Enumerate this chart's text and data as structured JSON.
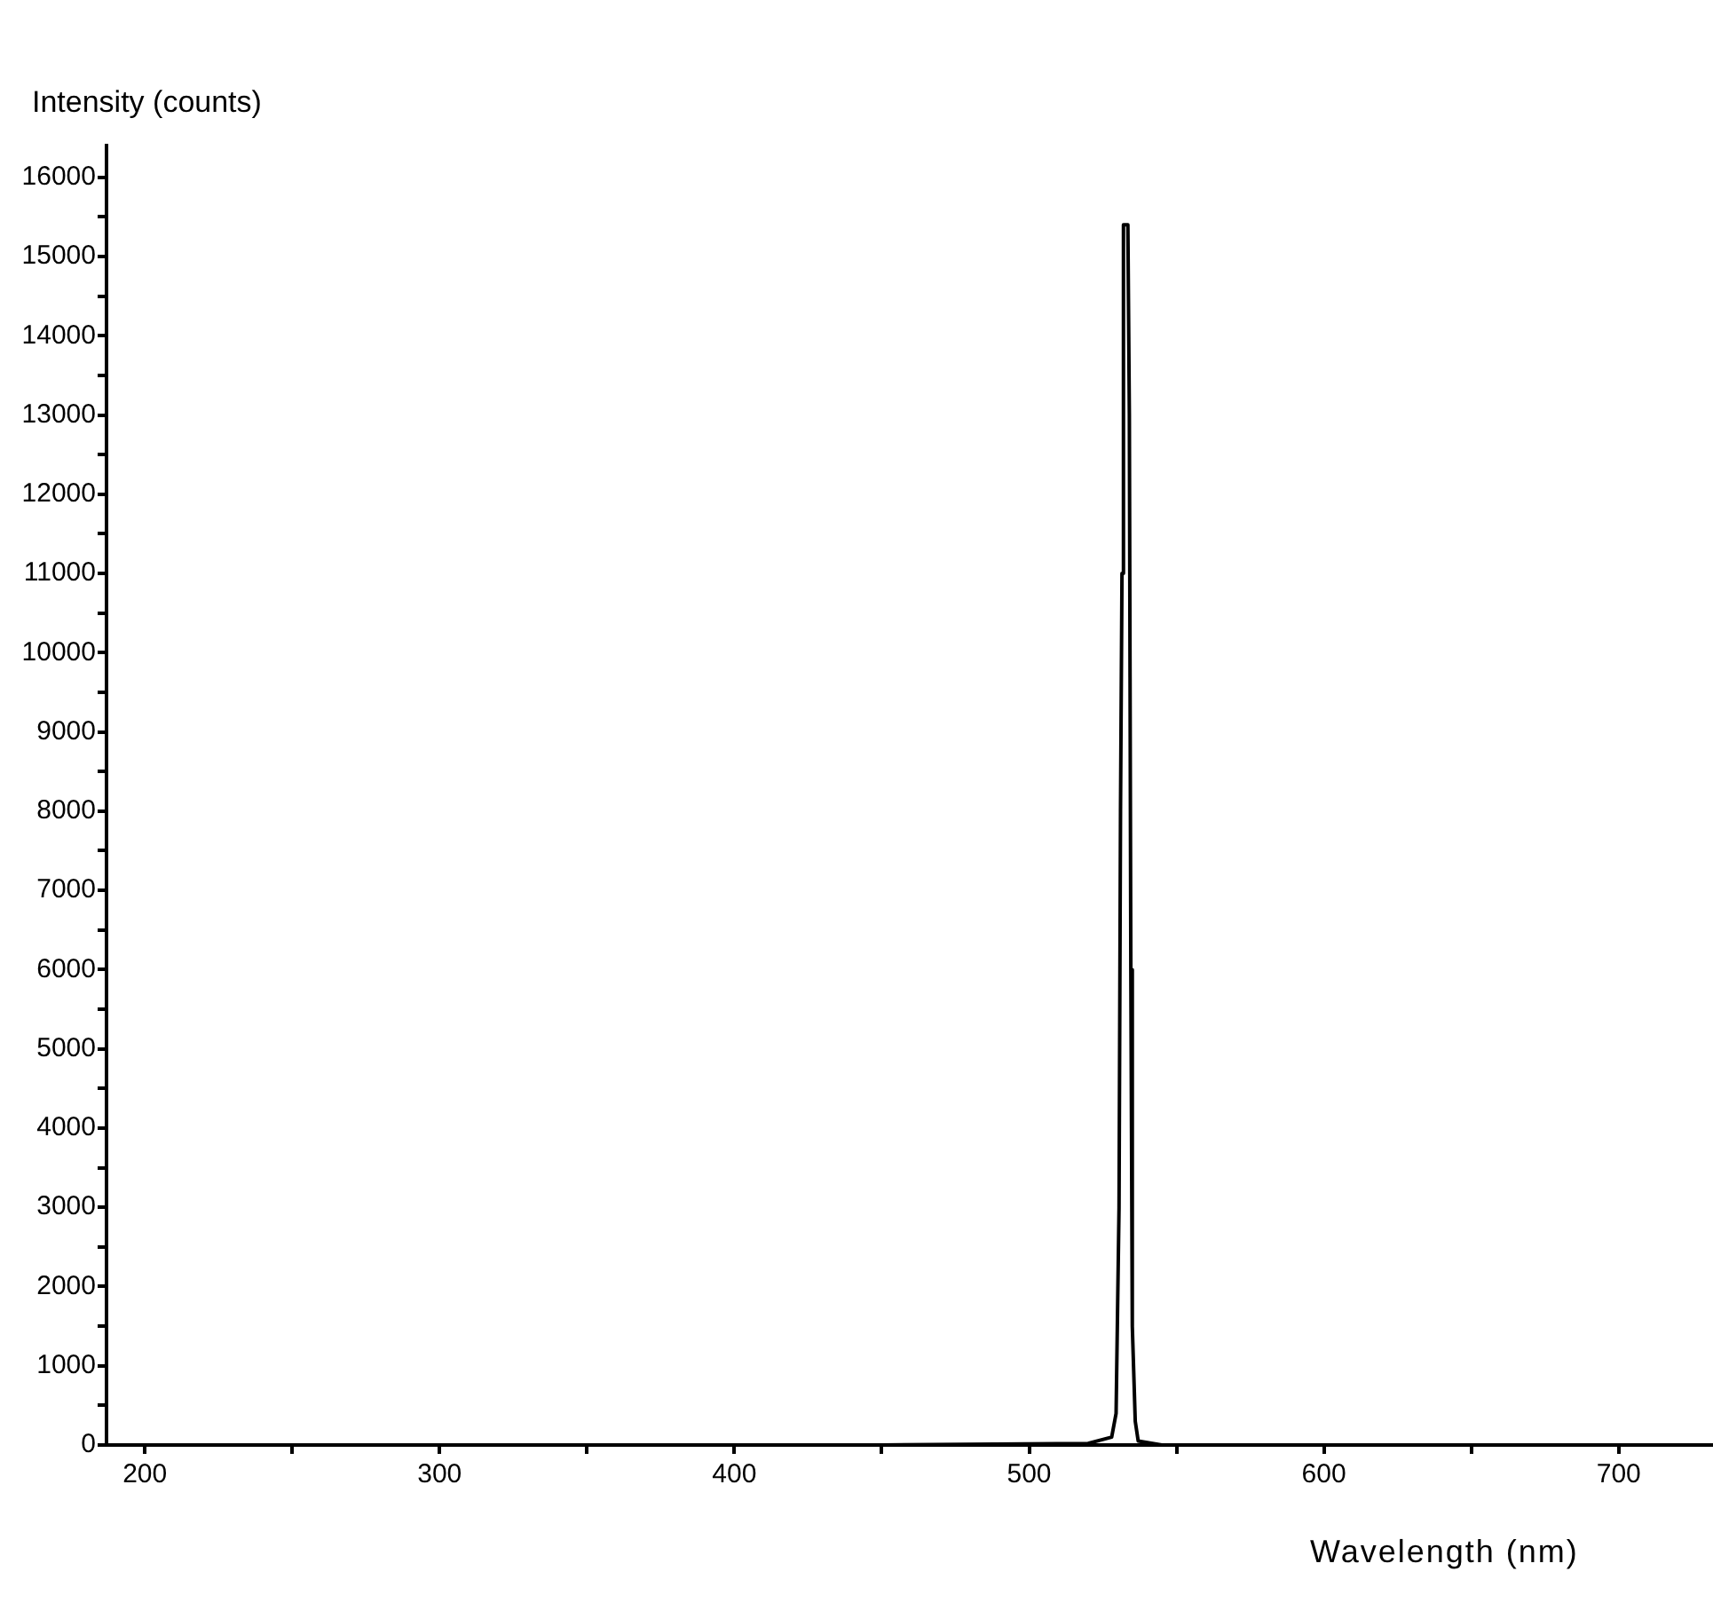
{
  "chart_data": {
    "type": "line",
    "xlabel": "Wavelength (nm)",
    "ylabel": "Intensity (counts)",
    "x": [
      187,
      300,
      450,
      520,
      528,
      529.5,
      530.5,
      531,
      531.5,
      532,
      533.5,
      534,
      534.5,
      535,
      536,
      537,
      545,
      600,
      732
    ],
    "series": [
      {
        "color": "#000000",
        "values": [
          0,
          0,
          0,
          20,
          100,
          400,
          3000,
          8000,
          11000,
          15400,
          15400,
          13000,
          6000,
          1500,
          300,
          50,
          0,
          0,
          0
        ]
      }
    ],
    "xlim": [
      187,
      732
    ],
    "xticks": [
      200,
      {
        "value": 250,
        "label": null
      },
      300,
      {
        "value": 350,
        "label": null
      },
      400,
      {
        "value": 450,
        "label": null
      },
      500,
      {
        "value": 550,
        "label": null
      },
      600,
      {
        "value": 650,
        "label": null
      },
      700
    ],
    "ylim": [
      0,
      16400
    ],
    "yticks": [
      0,
      {
        "value": 500,
        "label": null
      },
      1000,
      {
        "value": 1500,
        "label": null
      },
      2000,
      {
        "value": 2500,
        "label": null
      },
      3000,
      {
        "value": 3500,
        "label": null
      },
      4000,
      {
        "value": 4500,
        "label": null
      },
      5000,
      {
        "value": 5500,
        "label": null
      },
      6000,
      {
        "value": 6500,
        "label": null
      },
      7000,
      {
        "value": 7500,
        "label": null
      },
      8000,
      {
        "value": 8500,
        "label": null
      },
      9000,
      {
        "value": 9500,
        "label": null
      },
      10000,
      {
        "value": 10500,
        "label": null
      },
      11000,
      {
        "value": 11500,
        "label": null
      },
      12000,
      {
        "value": 12500,
        "label": null
      },
      13000,
      {
        "value": 13500,
        "label": null
      },
      14000,
      {
        "value": 14500,
        "label": null
      },
      15000,
      {
        "value": 15500,
        "label": null
      },
      16000
    ],
    "grid": false,
    "legend": false,
    "marker": "none",
    "line_style": "solid"
  }
}
